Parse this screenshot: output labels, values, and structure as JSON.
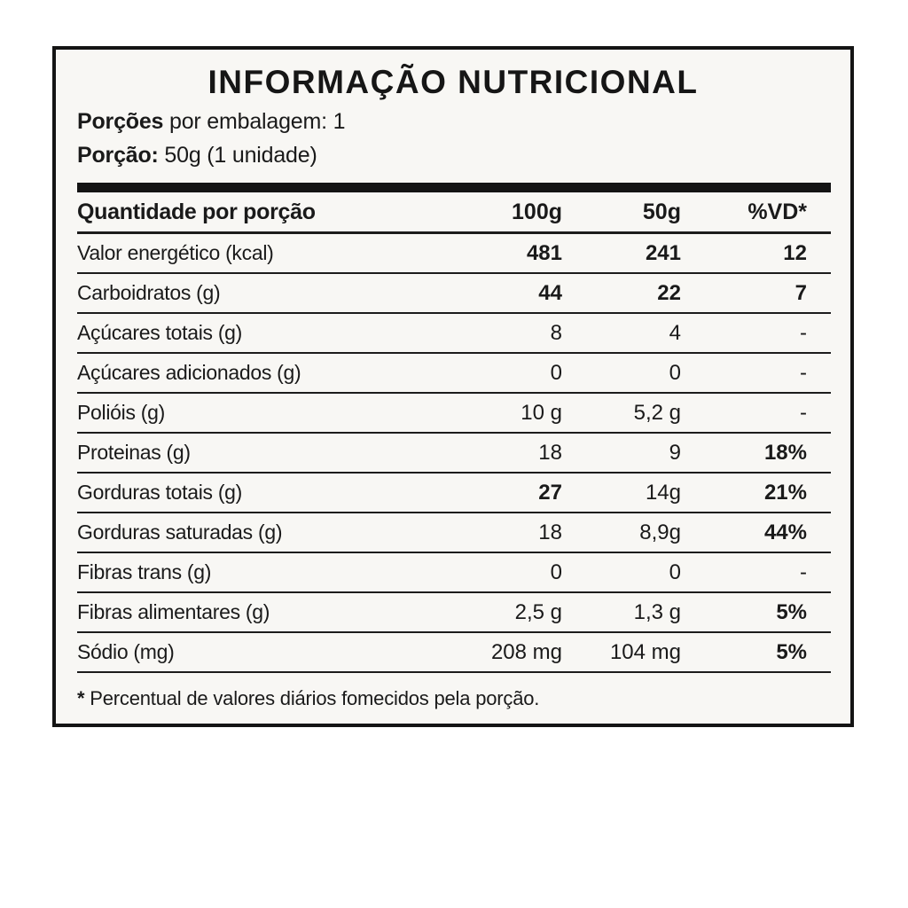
{
  "panel": {
    "title": "INFORMAÇÃO NUTRICIONAL",
    "servings_bold": "Porções",
    "servings_rest": " por embalagem: 1",
    "portion_bold": "Porção:",
    "portion_rest": " 50g (1 unidade)",
    "footnote_star": "*",
    "footnote_text": " Percentual de valores diários fomecidos pela porção."
  },
  "table": {
    "header": {
      "label": "Quantidade por porção",
      "col_100g": "100g",
      "col_50g": "50g",
      "col_vd": "%VD*"
    },
    "rows": [
      {
        "label": "Valor energético (kcal)",
        "v100": "481",
        "v50": "241",
        "vd": "12",
        "bold": [
          true,
          true,
          true
        ]
      },
      {
        "label": "Carboidratos (g)",
        "v100": "44",
        "v50": "22",
        "vd": "7",
        "bold": [
          true,
          true,
          true
        ]
      },
      {
        "label": "Açúcares totais (g)",
        "v100": "8",
        "v50": "4",
        "vd": "-",
        "bold": [
          false,
          false,
          false
        ]
      },
      {
        "label": "Açúcares adicionados (g)",
        "v100": "0",
        "v50": "0",
        "vd": "-",
        "bold": [
          false,
          false,
          false
        ]
      },
      {
        "label": "Polióis (g)",
        "v100": "10 g",
        "v50": "5,2 g",
        "vd": "-",
        "bold": [
          false,
          false,
          false
        ]
      },
      {
        "label": "Proteinas (g)",
        "v100": "18",
        "v50": "9",
        "vd": "18%",
        "bold": [
          false,
          false,
          true
        ]
      },
      {
        "label": "Gorduras totais (g)",
        "v100": "27",
        "v50": "14g",
        "vd": "21%",
        "bold": [
          true,
          false,
          true
        ]
      },
      {
        "label": "Gorduras saturadas (g)",
        "v100": "18",
        "v50": "8,9g",
        "vd": "44%",
        "bold": [
          false,
          false,
          true
        ]
      },
      {
        "label": "Fibras trans (g)",
        "v100": "0",
        "v50": "0",
        "vd": "-",
        "bold": [
          false,
          false,
          false
        ]
      },
      {
        "label": "Fibras alimentares (g)",
        "v100": "2,5 g",
        "v50": "1,3 g",
        "vd": "5%",
        "bold": [
          false,
          false,
          true
        ]
      },
      {
        "label": "Sódio (mg)",
        "v100": "208 mg",
        "v50": "104 mg",
        "vd": "5%",
        "bold": [
          false,
          false,
          true
        ]
      }
    ]
  },
  "colors": {
    "border": "#141414",
    "panel_background": "#f8f7f4",
    "text": "#1a1a1a"
  }
}
